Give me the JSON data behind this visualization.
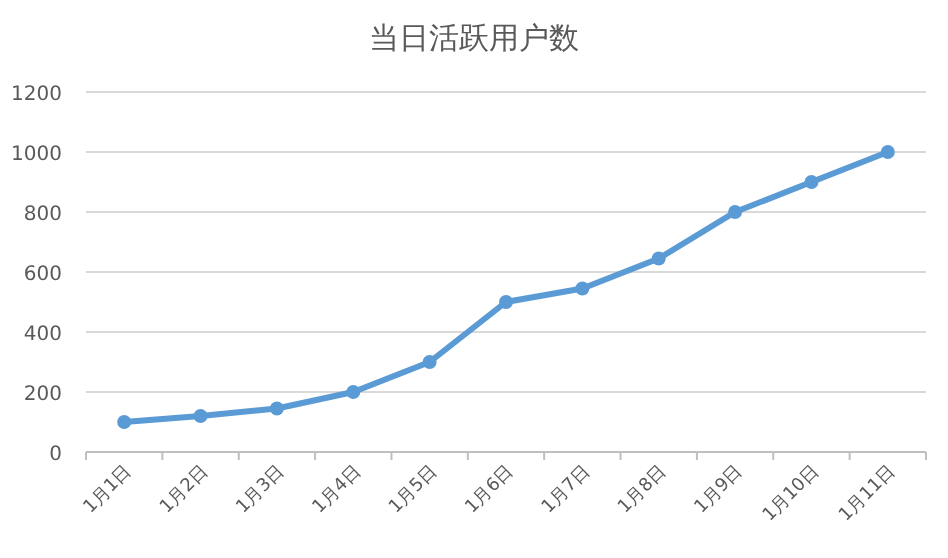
{
  "chart_data": {
    "type": "line",
    "title": "当日活跃用户数",
    "categories": [
      "1月1日",
      "1月2日",
      "1月3日",
      "1月4日",
      "1月5日",
      "1月6日",
      "1月7日",
      "1月8日",
      "1月9日",
      "1月10日",
      "1月11日"
    ],
    "values": [
      100,
      120,
      145,
      200,
      300,
      500,
      545,
      645,
      800,
      900,
      1000
    ],
    "color": "#5b9bd5",
    "ylim": [
      0,
      1200
    ],
    "yticks": [
      0,
      200,
      400,
      600,
      800,
      1000,
      1200
    ],
    "grid": "y",
    "marker": "circle",
    "line_style": "solid"
  }
}
